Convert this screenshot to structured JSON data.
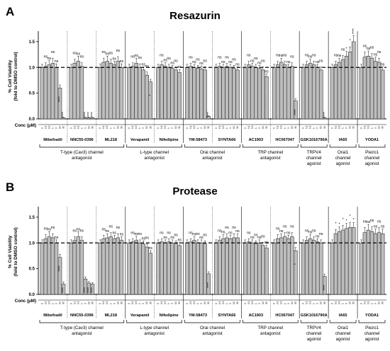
{
  "colors": {
    "bar": "#bdbdbd",
    "edge": "#1a1a1a",
    "axis": "#000000"
  },
  "chart_data": [
    {
      "type": "bar",
      "panel": "A",
      "title": "Resazurin",
      "ylabel": [
        "% Cell Viability",
        "(fold to DMSO control)"
      ],
      "ylim": [
        0,
        1.65
      ],
      "yticks": [
        "0.0",
        "0.5",
        "1.0",
        "1.5"
      ],
      "reference_line": 1.0,
      "xlabel": "Conc (μM)",
      "conc_ticks": [
        "0",
        "0.1",
        "0.3",
        "1",
        "3",
        "10",
        "30"
      ],
      "compounds": [
        {
          "name": "Mibefradil",
          "values": [
            1.0,
            1.02,
            1.05,
            1.08,
            1.0,
            0.6,
            0.02
          ],
          "errors": [
            0.06,
            0.07,
            0.08,
            0.1,
            0.07,
            0.06,
            0.01
          ],
          "sig": [
            "",
            "ns",
            "ns",
            "ns",
            "ns",
            "****",
            "****"
          ]
        },
        {
          "name": "NNC55-0396",
          "values": [
            1.0,
            1.08,
            1.12,
            1.02,
            0.02,
            0.02,
            0.02
          ],
          "errors": [
            0.06,
            0.08,
            0.1,
            0.07,
            0.01,
            0.01,
            0.01
          ],
          "sig": [
            "",
            "ns",
            "ns",
            "ns",
            "****",
            "****",
            "****"
          ]
        },
        {
          "name": "ML218",
          "values": [
            1.0,
            1.1,
            1.12,
            1.08,
            1.05,
            1.12,
            1.0
          ],
          "errors": [
            0.07,
            0.08,
            0.1,
            0.08,
            0.07,
            0.09,
            0.07
          ],
          "sig": [
            "",
            "ns",
            "ns",
            "ns",
            "ns",
            "ns",
            "ns"
          ]
        },
        {
          "name": "Verapamil",
          "values": [
            1.0,
            1.02,
            1.08,
            1.0,
            0.95,
            0.85,
            0.72
          ],
          "errors": [
            0.06,
            0.07,
            0.1,
            0.07,
            0.06,
            0.06,
            0.05
          ],
          "sig": [
            "",
            "ns",
            "ns",
            "ns",
            "ns",
            "ns",
            "*"
          ]
        },
        {
          "name": "Nifedipine",
          "values": [
            1.0,
            1.05,
            1.02,
            1.0,
            0.98,
            0.95,
            0.9
          ],
          "errors": [
            0.06,
            0.07,
            0.07,
            0.06,
            0.06,
            0.06,
            0.06
          ],
          "sig": [
            "",
            "ns",
            "ns",
            "ns",
            "ns",
            "ns",
            "ns"
          ]
        },
        {
          "name": "YM-58473",
          "values": [
            1.0,
            1.02,
            1.0,
            0.98,
            0.97,
            0.95,
            0.05
          ],
          "errors": [
            0.06,
            0.06,
            0.06,
            0.06,
            0.06,
            0.06,
            0.01
          ],
          "sig": [
            "",
            "ns",
            "ns",
            "ns",
            "ns",
            "ns",
            "****"
          ]
        },
        {
          "name": "SYNTA66",
          "values": [
            1.0,
            1.02,
            1.0,
            1.02,
            1.0,
            0.98,
            0.95
          ],
          "errors": [
            0.06,
            0.06,
            0.06,
            0.06,
            0.06,
            0.06,
            0.06
          ],
          "sig": [
            "",
            "ns",
            "ns",
            "ns",
            "ns",
            "ns",
            "ns"
          ]
        },
        {
          "name": "AC1903",
          "values": [
            1.0,
            1.05,
            1.02,
            1.0,
            0.98,
            0.95,
            0.82
          ],
          "errors": [
            0.06,
            0.07,
            0.06,
            0.06,
            0.06,
            0.06,
            0.05
          ],
          "sig": [
            "",
            "ns",
            "ns",
            "ns",
            "ns",
            "ns",
            "ns"
          ]
        },
        {
          "name": "HC067047",
          "values": [
            1.0,
            1.05,
            1.1,
            1.05,
            1.0,
            1.02,
            0.35
          ],
          "errors": [
            0.06,
            0.07,
            0.08,
            0.07,
            0.06,
            0.07,
            0.04
          ],
          "sig": [
            "",
            "ns",
            "ns",
            "ns",
            "ns",
            "ns",
            "****"
          ]
        },
        {
          "name": "GSK1016790A",
          "values": [
            1.0,
            1.05,
            1.08,
            1.05,
            1.0,
            0.95,
            0.02
          ],
          "errors": [
            0.06,
            0.07,
            0.08,
            0.07,
            0.06,
            0.06,
            0.01
          ],
          "sig": [
            "",
            "ns",
            "ns",
            "ns",
            "ns",
            "ns",
            "****"
          ]
        },
        {
          "name": "IA65",
          "values": [
            1.0,
            1.05,
            1.1,
            1.15,
            1.22,
            1.3,
            1.5
          ],
          "errors": [
            0.06,
            0.07,
            0.08,
            0.08,
            0.09,
            0.1,
            0.12
          ],
          "sig": [
            "",
            "ns",
            "ns",
            "ns",
            "*",
            "*",
            "****"
          ]
        },
        {
          "name": "YODA1",
          "values": [
            1.0,
            1.2,
            1.22,
            1.18,
            1.12,
            1.1,
            0.95
          ],
          "errors": [
            0.06,
            0.1,
            0.1,
            0.09,
            0.08,
            0.08,
            0.06
          ],
          "sig": [
            "",
            "ns",
            "ns",
            "ns",
            "ns",
            "ns",
            "ns"
          ]
        }
      ]
    },
    {
      "type": "bar",
      "panel": "B",
      "title": "Protease",
      "ylabel": [
        "% Cell Viability",
        "(fold to DMSO control)"
      ],
      "ylim": [
        0,
        1.65
      ],
      "yticks": [
        "0.0",
        "0.5",
        "1.0",
        "1.5"
      ],
      "reference_line": 1.0,
      "xlabel": "Conc (μM)",
      "conc_ticks": [
        "0",
        "0.1",
        "0.3",
        "1",
        "3",
        "10",
        "30"
      ],
      "compounds": [
        {
          "name": "Mibefradil",
          "values": [
            1.0,
            1.08,
            1.12,
            1.1,
            1.0,
            0.72,
            0.2
          ],
          "errors": [
            0.06,
            0.08,
            0.1,
            0.08,
            0.06,
            0.06,
            0.04
          ],
          "sig": [
            "",
            "ns",
            "ns",
            "ns",
            "ns",
            "****",
            "****"
          ]
        },
        {
          "name": "NNC55-0396",
          "values": [
            1.0,
            1.05,
            1.12,
            1.05,
            0.3,
            0.22,
            0.2
          ],
          "errors": [
            0.06,
            0.07,
            0.1,
            0.07,
            0.04,
            0.03,
            0.03
          ],
          "sig": [
            "",
            "ns",
            "ns",
            "ns",
            "****",
            "****",
            "****"
          ]
        },
        {
          "name": "ML218",
          "values": [
            1.0,
            1.08,
            1.1,
            1.12,
            1.08,
            1.1,
            1.05
          ],
          "errors": [
            0.06,
            0.07,
            0.08,
            0.08,
            0.07,
            0.08,
            0.07
          ],
          "sig": [
            "",
            "ns",
            "ns",
            "ns",
            "ns",
            "ns",
            "ns"
          ]
        },
        {
          "name": "Verapamil",
          "values": [
            1.0,
            1.02,
            1.05,
            1.0,
            0.98,
            0.92,
            0.8
          ],
          "errors": [
            0.06,
            0.06,
            0.08,
            0.06,
            0.06,
            0.06,
            0.05
          ],
          "sig": [
            "",
            "ns",
            "ns",
            "ns",
            "ns",
            "ns",
            "ns"
          ]
        },
        {
          "name": "Nifedipine",
          "values": [
            1.0,
            1.02,
            1.0,
            1.02,
            1.0,
            0.98,
            0.95
          ],
          "errors": [
            0.06,
            0.06,
            0.06,
            0.06,
            0.06,
            0.06,
            0.06
          ],
          "sig": [
            "",
            "ns",
            "ns",
            "ns",
            "ns",
            "ns",
            "ns"
          ]
        },
        {
          "name": "YM-58473",
          "values": [
            1.0,
            1.02,
            1.05,
            1.0,
            1.0,
            0.98,
            0.4
          ],
          "errors": [
            0.06,
            0.06,
            0.07,
            0.06,
            0.06,
            0.06,
            0.04
          ],
          "sig": [
            "",
            "ns",
            "ns",
            "ns",
            "ns",
            "ns",
            "****"
          ]
        },
        {
          "name": "SYNTA66",
          "values": [
            1.0,
            1.05,
            1.08,
            1.1,
            1.08,
            1.1,
            1.1
          ],
          "errors": [
            0.06,
            0.07,
            0.08,
            0.08,
            0.07,
            0.08,
            0.08
          ],
          "sig": [
            "",
            "ns",
            "ns",
            "ns",
            "ns",
            "ns",
            "ns"
          ]
        },
        {
          "name": "AC1903",
          "values": [
            1.0,
            1.02,
            1.0,
            0.98,
            1.0,
            0.95,
            0.9
          ],
          "errors": [
            0.06,
            0.06,
            0.06,
            0.06,
            0.06,
            0.06,
            0.06
          ],
          "sig": [
            "",
            "ns",
            "ns",
            "ns",
            "ns",
            "ns",
            "ns"
          ]
        },
        {
          "name": "HC067047",
          "values": [
            1.0,
            1.08,
            1.1,
            1.12,
            1.08,
            1.12,
            0.85
          ],
          "errors": [
            0.06,
            0.08,
            0.08,
            0.08,
            0.07,
            0.08,
            0.06
          ],
          "sig": [
            "",
            "ns",
            "ns",
            "ns",
            "ns",
            "ns",
            "*"
          ]
        },
        {
          "name": "GSK1016790A",
          "values": [
            1.0,
            1.05,
            1.08,
            1.05,
            1.02,
            1.0,
            0.35
          ],
          "errors": [
            0.06,
            0.07,
            0.08,
            0.07,
            0.06,
            0.06,
            0.04
          ],
          "sig": [
            "",
            "ns",
            "ns",
            "ns",
            "ns",
            "ns",
            "****"
          ]
        },
        {
          "name": "IA65",
          "values": [
            1.0,
            1.18,
            1.22,
            1.25,
            1.28,
            1.3,
            1.3
          ],
          "errors": [
            0.06,
            0.08,
            0.09,
            0.09,
            0.1,
            0.1,
            0.1
          ],
          "sig": [
            "",
            "*",
            "*",
            "*",
            "*",
            "*",
            "*"
          ]
        },
        {
          "name": "YODA1",
          "values": [
            1.0,
            1.2,
            1.25,
            1.22,
            1.18,
            1.2,
            1.18
          ],
          "errors": [
            0.06,
            0.1,
            0.11,
            0.1,
            0.09,
            0.1,
            0.09
          ],
          "sig": [
            "",
            "ns",
            "ns",
            "ns",
            "ns",
            "ns",
            "ns"
          ]
        }
      ]
    }
  ],
  "compound_classes": [
    {
      "lines": [
        "T-type (Cav3) channel",
        "antagonist"
      ],
      "first": 0,
      "last": 2
    },
    {
      "lines": [
        "L-type channel",
        "antagonist"
      ],
      "first": 3,
      "last": 4
    },
    {
      "lines": [
        "Orai channel",
        "antagonist"
      ],
      "first": 5,
      "last": 6
    },
    {
      "lines": [
        "TRP channel",
        "antagonist"
      ],
      "first": 7,
      "last": 8
    },
    {
      "lines": [
        "TRPV4",
        "channel",
        "agonist"
      ],
      "first": 9,
      "last": 9
    },
    {
      "lines": [
        "Orai1",
        "channel",
        "agonist"
      ],
      "first": 10,
      "last": 10
    },
    {
      "lines": [
        "Piezo1",
        "channel",
        "agonist"
      ],
      "first": 11,
      "last": 11
    }
  ]
}
